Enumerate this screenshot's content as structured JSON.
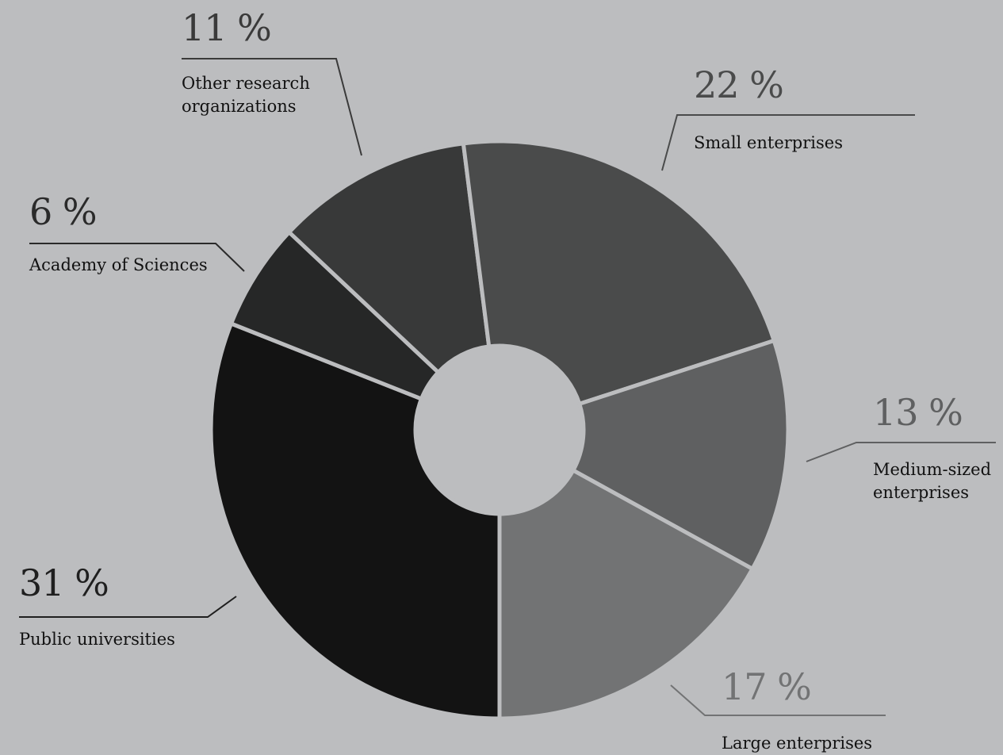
{
  "chart_data": {
    "type": "pie",
    "donut": true,
    "start_angle_deg": 180,
    "direction": "clockwise",
    "background": "#bcbdbf",
    "slices": [
      {
        "label": "Public universities",
        "value": 31,
        "value_label": "31 %",
        "color": "#131313",
        "label_color": "#1f1f1f"
      },
      {
        "label": "Academy of Sciences",
        "value": 6,
        "value_label": "6 %",
        "color": "#262727",
        "label_color": "#2a2a2a"
      },
      {
        "label": "Other research organizations",
        "value": 11,
        "value_label": "11 %",
        "color": "#383939",
        "label_color": "#3a3a3a"
      },
      {
        "label": "Small enterprises",
        "value": 22,
        "value_label": "22 %",
        "color": "#4a4b4b",
        "label_color": "#4a4b4b"
      },
      {
        "label": "Medium-sized enterprises",
        "value": 13,
        "value_label": "13 %",
        "color": "#5f6061",
        "label_color": "#5f6061"
      },
      {
        "label": "Large enterprises",
        "value": 17,
        "value_label": "17 %",
        "color": "#727374",
        "label_color": "#727374"
      }
    ]
  }
}
